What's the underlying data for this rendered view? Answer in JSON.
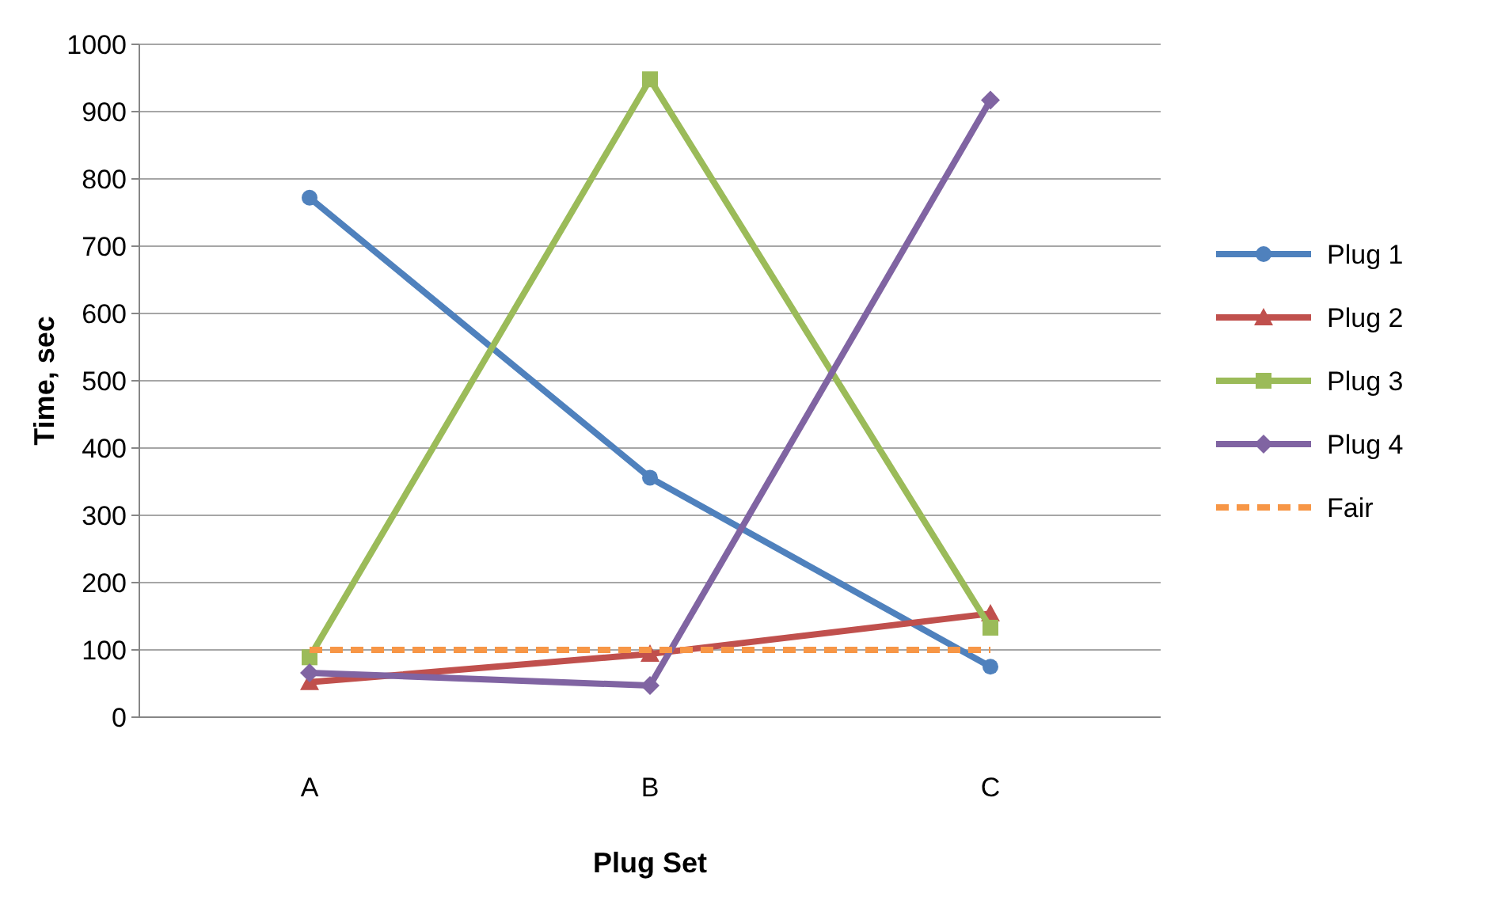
{
  "chart_data": {
    "type": "line",
    "xlabel": "Plug Set",
    "ylabel": "Time, sec",
    "categories": [
      "A",
      "B",
      "C"
    ],
    "series": [
      {
        "name": "Plug 1",
        "color": "#4f81bd",
        "marker": "circle",
        "values": [
          772,
          356,
          75
        ]
      },
      {
        "name": "Plug 2",
        "color": "#c0504d",
        "marker": "triangle",
        "values": [
          52,
          94,
          154
        ]
      },
      {
        "name": "Plug 3",
        "color": "#9bbb59",
        "marker": "square",
        "values": [
          89,
          948,
          133
        ]
      },
      {
        "name": "Plug 4",
        "color": "#8064a2",
        "marker": "diamond",
        "values": [
          66,
          47,
          917
        ]
      },
      {
        "name": "Fair",
        "color": "#f79646",
        "marker": "none",
        "line_style": "dashed",
        "values": [
          100,
          100,
          100
        ]
      }
    ],
    "ylim": [
      0,
      1000
    ],
    "yticks": [
      0,
      100,
      200,
      300,
      400,
      500,
      600,
      700,
      800,
      900,
      1000
    ],
    "grid": "y",
    "legend": "right"
  }
}
